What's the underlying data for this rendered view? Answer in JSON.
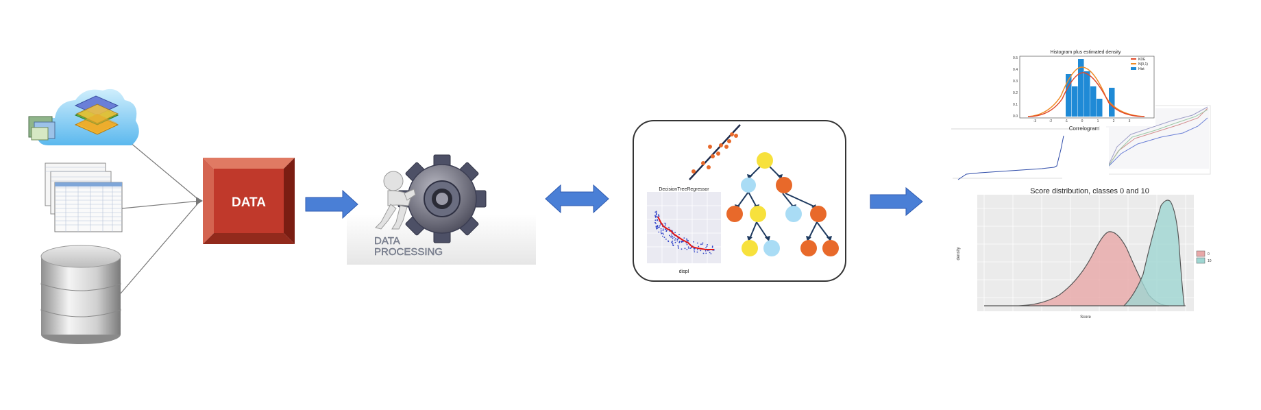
{
  "data_block": {
    "label": "DATA"
  },
  "processing": {
    "line1": "DATA",
    "line2": "PROCESSING"
  },
  "model": {
    "regressor_title": "DecisionTreeRegressor",
    "regressor_xlabel": "displ"
  },
  "outputs": {
    "histogram": {
      "title": "Histogram plus estimated density",
      "legend": [
        "KDE",
        "N(0,1)",
        "Hist"
      ],
      "xticks": [
        "-3",
        "-2",
        "-1",
        "0",
        "1",
        "2",
        "3"
      ],
      "yticks": [
        "0.5",
        "0.4",
        "0.3",
        "0.2",
        "0.1",
        "0.0"
      ]
    },
    "correlogram": {
      "title": "Correlogram"
    },
    "score": {
      "title": "Score distribution, classes 0 and 10",
      "xlabel": "Score",
      "ylabel": "density",
      "legend": [
        "0",
        "10"
      ]
    }
  },
  "colors": {
    "data_red": "#c0392b",
    "arrow_blue": "#4a7fd6",
    "node_yellow": "#f7e13c",
    "node_orange": "#e8692a",
    "node_lightblue": "#a9dcf5",
    "density_pink": "#e8a8a8",
    "density_teal": "#9fd6d2"
  }
}
